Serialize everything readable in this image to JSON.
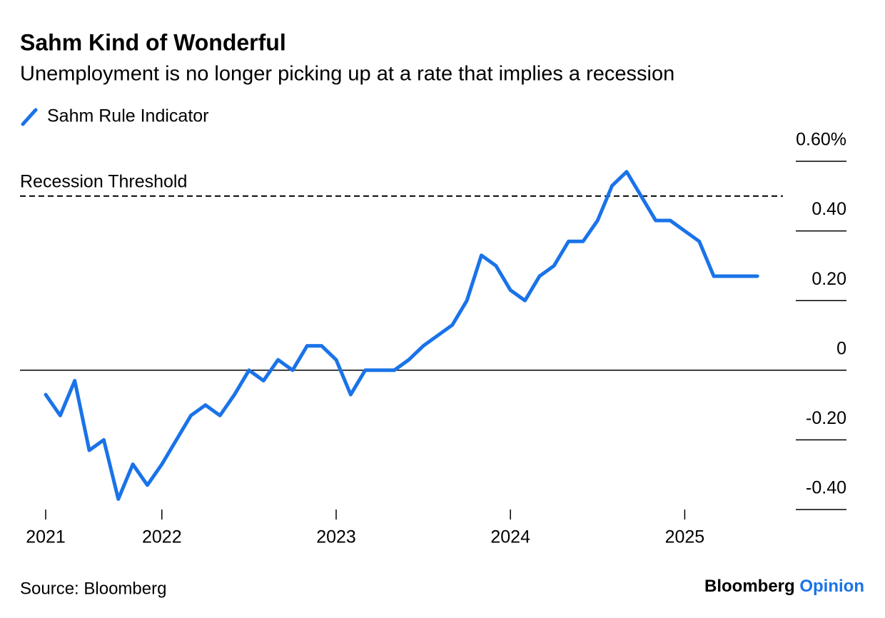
{
  "chart_data": {
    "type": "line",
    "title": "Sahm Kind of Wonderful",
    "subtitle": "Unemployment is no longer picking up at a rate that implies a recession",
    "categories": [
      "2021",
      null,
      null,
      null,
      null,
      null,
      null,
      null,
      "2022",
      null,
      null,
      null,
      null,
      null,
      null,
      null,
      null,
      null,
      null,
      null,
      "2023",
      null,
      null,
      null,
      null,
      null,
      null,
      null,
      null,
      null,
      null,
      null,
      "2024",
      null,
      null,
      null,
      null,
      null,
      null,
      null,
      null,
      null,
      null,
      null,
      "2025",
      null,
      null,
      null,
      null,
      null
    ],
    "series": [
      {
        "name": "Sahm Rule Indicator",
        "color": "#1a73e8",
        "values": [
          -0.07,
          -0.13,
          -0.03,
          -0.23,
          -0.2,
          -0.37,
          -0.27,
          -0.33,
          -0.27,
          -0.2,
          -0.13,
          -0.1,
          -0.13,
          -0.07,
          0,
          -0.03,
          0.03,
          0,
          0.07,
          0.07,
          0.03,
          -0.07,
          0,
          0,
          0,
          0.03,
          0.07,
          0.1,
          0.13,
          0.2,
          0.33,
          0.3,
          0.23,
          0.2,
          0.27,
          0.3,
          0.37,
          0.37,
          0.43,
          0.53,
          0.57,
          0.5,
          0.43,
          0.43,
          0.4,
          0.37,
          0.27,
          0.27,
          0.27,
          0.27
        ]
      }
    ],
    "threshold": {
      "label": "Recession Threshold",
      "value": 0.5
    },
    "ylim": [
      -0.4,
      0.6
    ],
    "yticks": [
      {
        "value": 0.6,
        "label": "0.60%"
      },
      {
        "value": 0.4,
        "label": "0.40"
      },
      {
        "value": 0.2,
        "label": "0.20"
      },
      0,
      {
        "value": -0.2,
        "label": "-0.20"
      },
      {
        "value": -0.4,
        "label": "-0.40"
      }
    ],
    "source": "Source: Bloomberg",
    "brand": [
      "Bloomberg",
      "Opinion"
    ]
  }
}
